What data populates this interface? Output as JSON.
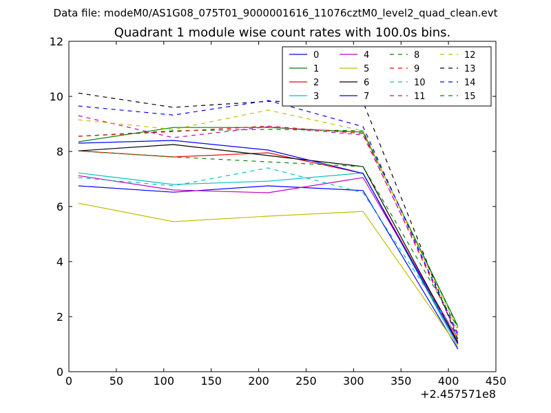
{
  "chart_data": {
    "type": "line",
    "suptitle": "Data file: modeM0/AS1G08_075T01_9000001616_11076cztM0_level2_quad_clean.evt",
    "title": "Quadrant 1 module wise count rates with 100.0s bins.",
    "xlabel": "",
    "ylabel": "",
    "x_offset_label": "+2.457571e8",
    "xlim": [
      0,
      450
    ],
    "ylim": [
      0,
      12
    ],
    "x_ticks": [
      0,
      50,
      100,
      150,
      200,
      250,
      300,
      350,
      400,
      450
    ],
    "y_ticks": [
      0,
      2,
      4,
      6,
      8,
      10,
      12
    ],
    "grid": false,
    "legend_position": "top-right",
    "x": [
      10,
      110,
      210,
      310,
      410
    ],
    "series": [
      {
        "name": "0",
        "color": "#0000ff",
        "dashed": false,
        "values": [
          6.75,
          6.52,
          6.75,
          6.58,
          0.82
        ]
      },
      {
        "name": "1",
        "color": "#008000",
        "dashed": false,
        "values": [
          8.35,
          8.87,
          8.87,
          8.7,
          1.65
        ]
      },
      {
        "name": "2",
        "color": "#ff0000",
        "dashed": false,
        "values": [
          8.02,
          7.8,
          7.95,
          7.2,
          1.1
        ]
      },
      {
        "name": "3",
        "color": "#00bfbf",
        "dashed": false,
        "values": [
          7.22,
          6.8,
          6.92,
          7.22,
          0.9
        ]
      },
      {
        "name": "4",
        "color": "#bf00bf",
        "dashed": false,
        "values": [
          7.12,
          6.6,
          6.5,
          7.05,
          1.2
        ]
      },
      {
        "name": "5",
        "color": "#bfbf00",
        "dashed": false,
        "values": [
          6.12,
          5.45,
          5.65,
          5.82,
          0.9
        ]
      },
      {
        "name": "6",
        "color": "#000000",
        "dashed": false,
        "values": [
          8.02,
          8.25,
          7.85,
          7.45,
          1.05
        ]
      },
      {
        "name": "7",
        "color": "#0000ff",
        "dashed": false,
        "values": [
          8.3,
          8.4,
          8.05,
          7.2,
          1.0
        ]
      },
      {
        "name": "8",
        "color": "#008000",
        "dashed": true,
        "values": [
          8.55,
          8.75,
          8.8,
          8.75,
          1.6
        ]
      },
      {
        "name": "9",
        "color": "#ff0000",
        "dashed": true,
        "values": [
          8.55,
          8.72,
          8.92,
          8.65,
          1.3
        ]
      },
      {
        "name": "10",
        "color": "#00bfbf",
        "dashed": true,
        "values": [
          7.05,
          6.75,
          7.4,
          6.5,
          1.25
        ]
      },
      {
        "name": "11",
        "color": "#bf00bf",
        "dashed": true,
        "values": [
          9.3,
          8.5,
          8.9,
          8.6,
          1.4
        ]
      },
      {
        "name": "12",
        "color": "#bfbf00",
        "dashed": true,
        "values": [
          9.15,
          8.8,
          9.5,
          8.75,
          1.5
        ]
      },
      {
        "name": "13",
        "color": "#000000",
        "dashed": true,
        "values": [
          10.12,
          9.6,
          9.82,
          9.8,
          1.15
        ]
      },
      {
        "name": "14",
        "color": "#0000ff",
        "dashed": true,
        "values": [
          9.65,
          9.32,
          9.85,
          8.9,
          1.3
        ]
      },
      {
        "name": "15",
        "color": "#008000",
        "dashed": true,
        "values": [
          8.02,
          7.8,
          7.62,
          7.45,
          1.6
        ]
      }
    ]
  }
}
